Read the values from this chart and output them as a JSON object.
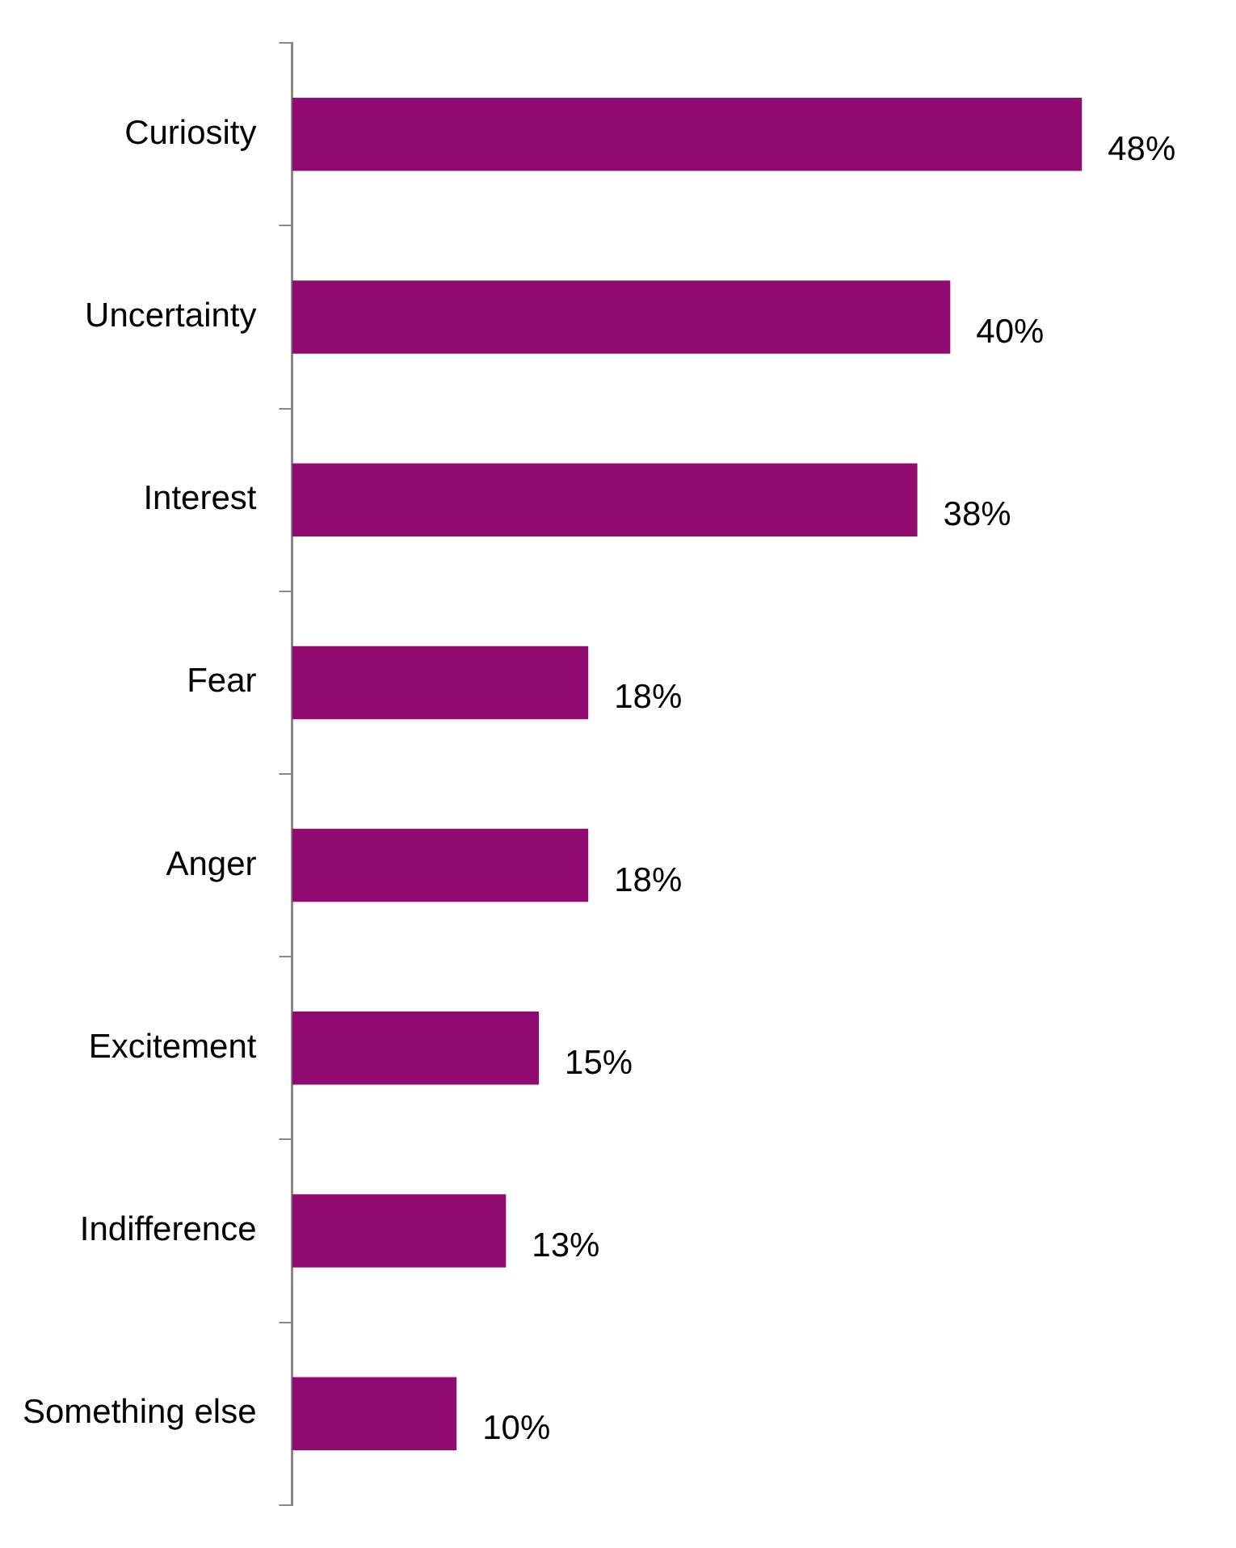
{
  "chart_data": {
    "type": "bar",
    "orientation": "horizontal",
    "categories": [
      "Curiosity",
      "Uncertainty",
      "Interest",
      "Fear",
      "Anger",
      "Excitement",
      "Indifference",
      "Something else"
    ],
    "values": [
      48,
      40,
      38,
      18,
      18,
      15,
      13,
      10
    ],
    "value_labels": [
      "48%",
      "40%",
      "38%",
      "18%",
      "18%",
      "15%",
      "13%",
      "10%"
    ],
    "color": "#910a6f"
  }
}
